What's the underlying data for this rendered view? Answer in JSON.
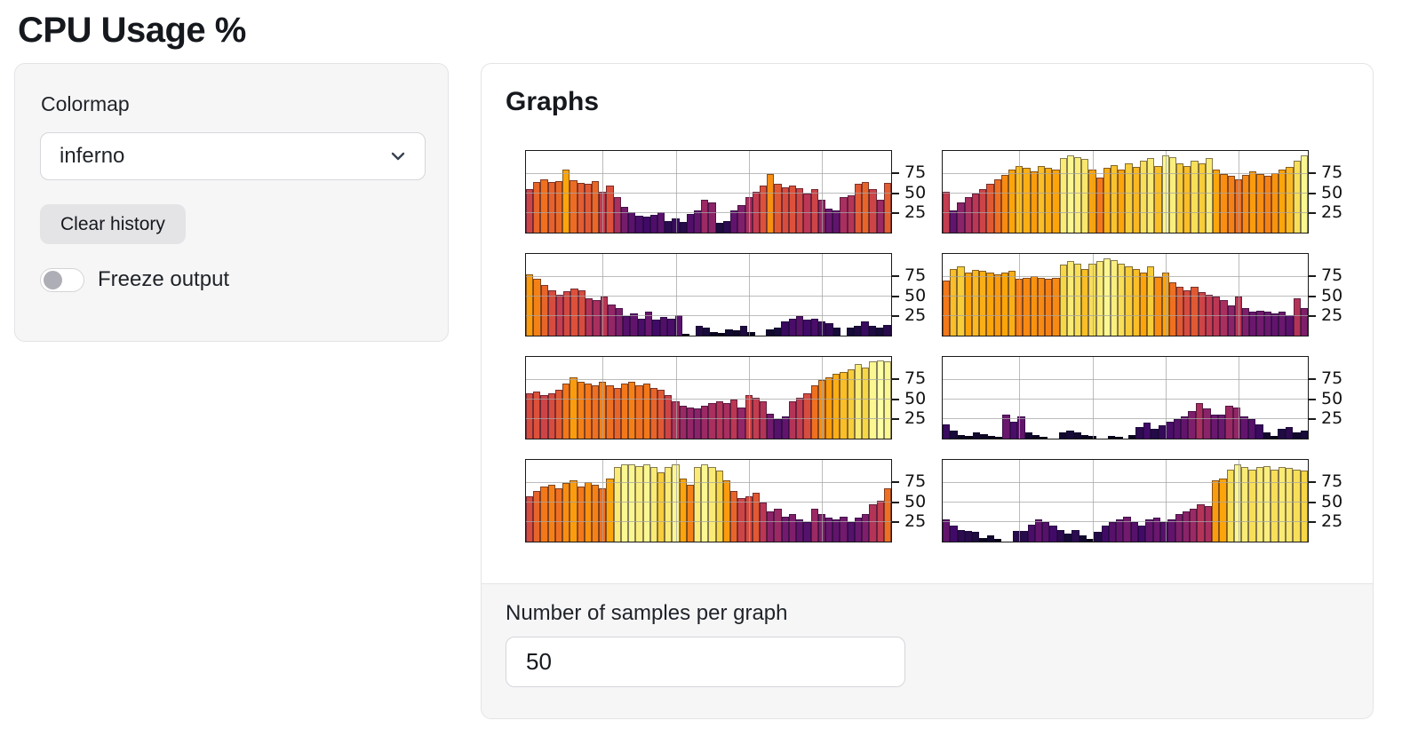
{
  "title": "CPU Usage %",
  "controls": {
    "colormap_label": "Colormap",
    "colormap_value": "inferno",
    "clear_history_label": "Clear history",
    "freeze_label": "Freeze output",
    "freeze_on": false
  },
  "output": {
    "heading": "Graphs",
    "samples_label": "Number of samples per graph",
    "samples_value": "50"
  },
  "colors": {
    "panel_bg": "#f6f6f6",
    "panel_border": "#e4e4e7",
    "button_bg": "#e4e4e7",
    "footer_bg": "#f6f6f7",
    "chart_frame": "#1a1a1a",
    "gridline": "#a5a5a5",
    "toggle_knob": "#aeaeb6"
  },
  "chart_data": {
    "type": "bar",
    "title": "",
    "xlabel": "",
    "ylabel": "",
    "ylim": [
      0,
      104
    ],
    "yticks": [
      25,
      50,
      75
    ],
    "grid": true,
    "xgrid_percents": [
      21,
      41,
      61,
      81
    ],
    "samples_per_graph": 50,
    "colormap": "inferno",
    "colormap_stops": [
      "#000004",
      "#160b39",
      "#420a68",
      "#6a176e",
      "#932667",
      "#bc3754",
      "#dd513a",
      "#f37819",
      "#fca50a",
      "#f6d746",
      "#fcffa4"
    ],
    "series": [
      {
        "name": "cpu-graph-1",
        "values": [
          55,
          65,
          68,
          64,
          66,
          80,
          67,
          63,
          62,
          66,
          52,
          60,
          45,
          33,
          26,
          22,
          20,
          23,
          26,
          15,
          18,
          14,
          24,
          28,
          42,
          38,
          12,
          15,
          28,
          35,
          45,
          52,
          60,
          75,
          62,
          58,
          60,
          56,
          50,
          55,
          42,
          30,
          28,
          45,
          48,
          62,
          65,
          55,
          42,
          63
        ]
      },
      {
        "name": "cpu-graph-2",
        "values": [
          52,
          28,
          38,
          45,
          50,
          55,
          62,
          68,
          74,
          80,
          85,
          82,
          78,
          85,
          82,
          80,
          95,
          98,
          96,
          94,
          80,
          70,
          82,
          86,
          80,
          88,
          84,
          92,
          95,
          85,
          98,
          96,
          88,
          85,
          92,
          88,
          95,
          80,
          75,
          72,
          68,
          74,
          78,
          75,
          72,
          76,
          80,
          84,
          92,
          98
        ]
      },
      {
        "name": "cpu-graph-3",
        "values": [
          78,
          72,
          65,
          58,
          52,
          57,
          60,
          58,
          48,
          45,
          50,
          40,
          35,
          25,
          28,
          22,
          30,
          20,
          24,
          22,
          26,
          2,
          0,
          13,
          10,
          5,
          3,
          8,
          7,
          12,
          4,
          0,
          0,
          8,
          10,
          18,
          22,
          25,
          20,
          22,
          18,
          16,
          10,
          0,
          10,
          12,
          18,
          12,
          10,
          14
        ]
      },
      {
        "name": "cpu-graph-4",
        "values": [
          70,
          85,
          88,
          80,
          84,
          82,
          80,
          78,
          80,
          82,
          72,
          74,
          76,
          74,
          72,
          74,
          90,
          95,
          92,
          85,
          92,
          95,
          98,
          96,
          92,
          88,
          85,
          80,
          88,
          75,
          80,
          68,
          62,
          58,
          62,
          55,
          52,
          50,
          45,
          38,
          50,
          35,
          30,
          32,
          30,
          28,
          30,
          26,
          48,
          35
        ]
      },
      {
        "name": "cpu-graph-5",
        "values": [
          58,
          60,
          55,
          58,
          62,
          70,
          78,
          72,
          70,
          68,
          72,
          68,
          65,
          70,
          72,
          68,
          70,
          65,
          62,
          55,
          48,
          42,
          40,
          38,
          42,
          45,
          48,
          45,
          50,
          40,
          55,
          52,
          48,
          32,
          25,
          28,
          48,
          52,
          58,
          68,
          75,
          78,
          82,
          85,
          88,
          95,
          90,
          98,
          100,
          98
        ]
      },
      {
        "name": "cpu-graph-6",
        "values": [
          18,
          10,
          5,
          3,
          8,
          6,
          3,
          2,
          30,
          22,
          28,
          8,
          5,
          2,
          0,
          0,
          8,
          10,
          8,
          5,
          3,
          0,
          0,
          3,
          2,
          0,
          5,
          15,
          20,
          13,
          17,
          22,
          25,
          28,
          35,
          45,
          38,
          30,
          30,
          42,
          40,
          28,
          25,
          18,
          8,
          3,
          12,
          15,
          8,
          10
        ]
      },
      {
        "name": "cpu-graph-7",
        "values": [
          58,
          65,
          70,
          72,
          68,
          75,
          78,
          70,
          76,
          72,
          68,
          80,
          95,
          98,
          98,
          96,
          98,
          95,
          88,
          95,
          98,
          80,
          72,
          95,
          98,
          95,
          90,
          78,
          65,
          55,
          58,
          62,
          50,
          38,
          42,
          32,
          35,
          28,
          25,
          42,
          35,
          30,
          28,
          32,
          25,
          30,
          35,
          48,
          52,
          68
        ]
      },
      {
        "name": "cpu-graph-8",
        "values": [
          28,
          20,
          15,
          14,
          12,
          5,
          8,
          3,
          0,
          0,
          14,
          14,
          22,
          28,
          25,
          20,
          15,
          10,
          15,
          8,
          3,
          13,
          20,
          25,
          28,
          32,
          25,
          20,
          28,
          30,
          25,
          28,
          35,
          38,
          42,
          48,
          45,
          78,
          80,
          92,
          98,
          95,
          92,
          95,
          96,
          92,
          95,
          94,
          92,
          90
        ]
      }
    ]
  }
}
